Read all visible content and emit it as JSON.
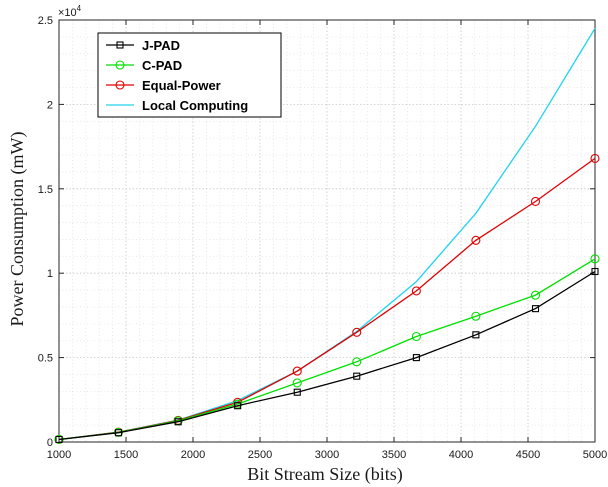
{
  "chart_data": {
    "type": "line",
    "xlabel": "Bit Stream Size (bits)",
    "ylabel": "Power Consumption (mW)",
    "xlim": [
      1000,
      5000
    ],
    "ylim": [
      0,
      25000
    ],
    "x_ticks": [
      1000,
      1500,
      2000,
      2500,
      3000,
      3500,
      4000,
      4500,
      5000
    ],
    "x_tick_labels": [
      "1000",
      "1500",
      "2000",
      "2500",
      "3000",
      "3500",
      "4000",
      "4500",
      "5000"
    ],
    "y_ticks": [
      0,
      5000,
      10000,
      15000,
      20000,
      25000
    ],
    "y_tick_labels": [
      "0",
      "0.5",
      "1",
      "1.5",
      "2",
      "2.5"
    ],
    "y_exponent_label": "×10",
    "y_exponent_power": "4",
    "grid": true,
    "legend_position": "top-left",
    "series": [
      {
        "name": "J-PAD",
        "color": "#000000",
        "marker": "square",
        "x": [
          1000,
          1444,
          1889,
          2333,
          2778,
          3222,
          3667,
          4111,
          4556,
          5000
        ],
        "y": [
          150,
          550,
          1200,
          2150,
          2950,
          3900,
          5000,
          6350,
          7900,
          10100
        ]
      },
      {
        "name": "C-PAD",
        "color": "#00e000",
        "marker": "circle",
        "x": [
          1000,
          1444,
          1889,
          2333,
          2778,
          3222,
          3667,
          4111,
          4556,
          5000
        ],
        "y": [
          150,
          570,
          1250,
          2250,
          3500,
          4750,
          6250,
          7450,
          8700,
          10850
        ]
      },
      {
        "name": "Equal-Power",
        "color": "#e00000",
        "marker": "circle",
        "x": [
          1000,
          1444,
          1889,
          2333,
          2778,
          3222,
          3667,
          4111,
          4556,
          5000
        ],
        "y": [
          150,
          580,
          1280,
          2350,
          4200,
          6500,
          8950,
          11950,
          14250,
          16800
        ]
      },
      {
        "name": "Local Computing",
        "color": "#22d3ee",
        "marker": "none",
        "x": [
          1000,
          1444,
          1889,
          2333,
          2778,
          3222,
          3667,
          4111,
          4556,
          5000
        ],
        "y": [
          150,
          580,
          1300,
          2450,
          4200,
          6550,
          9500,
          13550,
          18700,
          24500
        ]
      }
    ]
  }
}
